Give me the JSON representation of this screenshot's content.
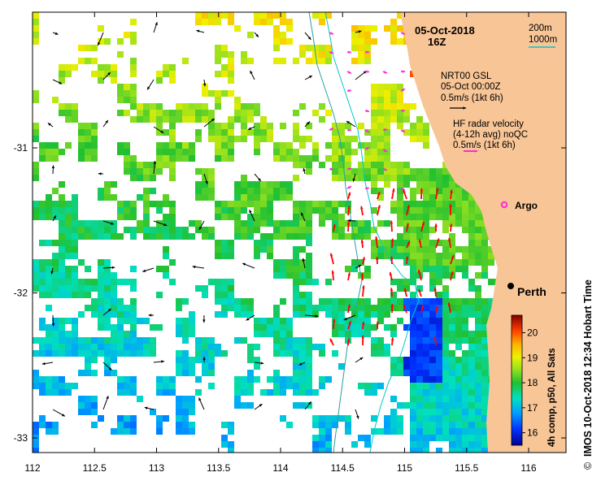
{
  "header": {
    "date": "05-Oct-2018",
    "time": "16Z"
  },
  "contours": {
    "label_200": "200m",
    "label_1000": "1000m",
    "color_200": "#00c8c8",
    "color_1000": "#2aa0a0"
  },
  "legend": {
    "model_name": "NRT00 GSL",
    "model_time": "05-Oct 00:00Z",
    "model_scale": "0.5m/s (1kt 6h)",
    "model_arrow_color": "#000000",
    "radar_title": "HF radar velocity",
    "radar_sub": "(4-12h avg) noQC",
    "radar_scale": "0.5m/s (1kt 6h)",
    "radar_arrow_color": "#ff2ad4",
    "argo_label": "Argo",
    "argo_color": "#ff2ad4"
  },
  "places": {
    "city": "Perth"
  },
  "axes": {
    "lon_ticks": [
      "112",
      "112.5",
      "113",
      "113.5",
      "114",
      "114.5",
      "115",
      "115.5",
      "116"
    ],
    "lat_ticks": [
      "-31",
      "-32",
      "-33"
    ]
  },
  "colorbar": {
    "title": "4h comp, p50, All Sats",
    "ticks": [
      "20",
      "19",
      "18",
      "17",
      "16"
    ],
    "min": 15.5,
    "max": 20.7
  },
  "credit": {
    "text": "IMOS 10-Oct-2018 12:34 Hobart Time",
    "symbol": "©"
  },
  "colors": {
    "land": "#f8c596",
    "current_red": "#ff0000",
    "ocean": "#ffffff"
  }
}
